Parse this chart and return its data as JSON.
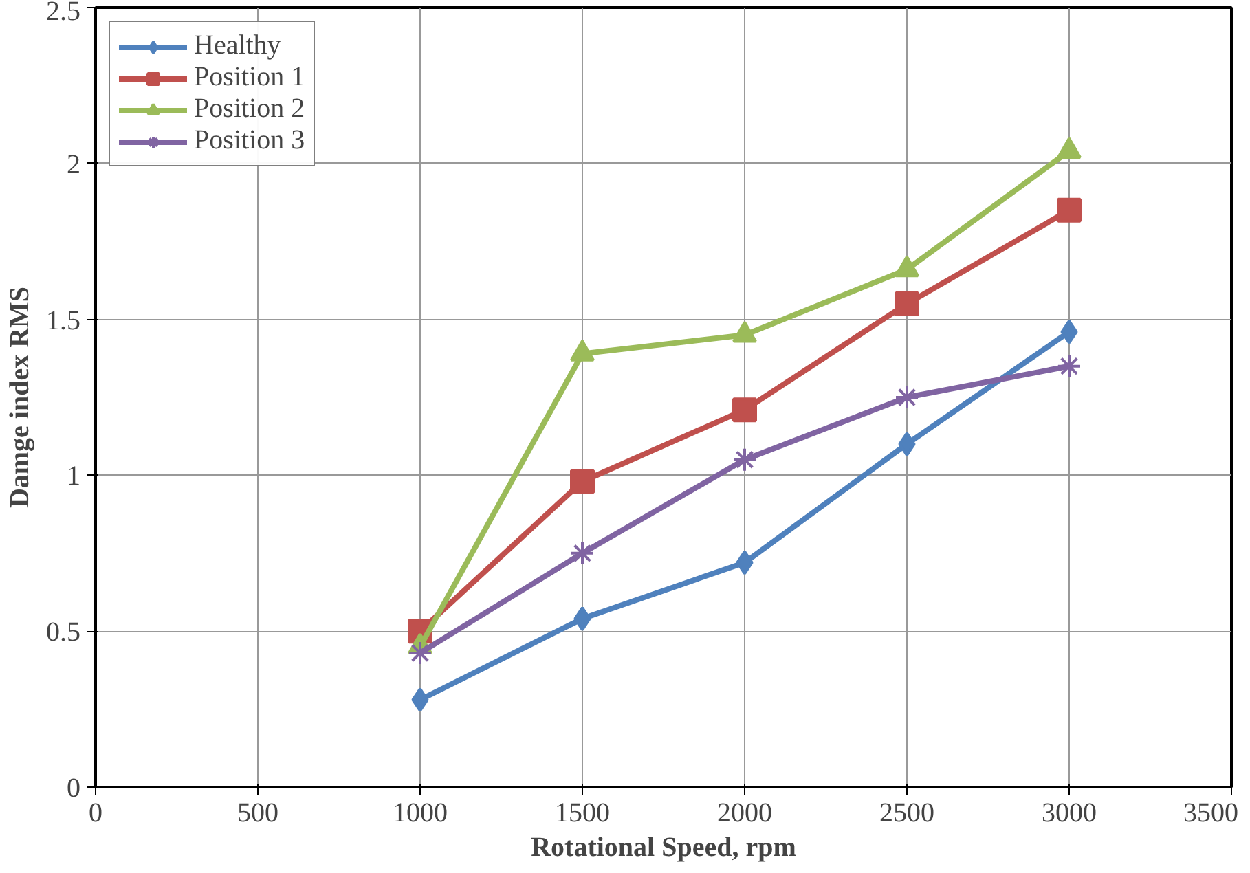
{
  "chart_data": {
    "type": "line",
    "xlabel": "Rotational Speed, rpm",
    "ylabel": "Damge index RMS",
    "x": [
      1000,
      1500,
      2000,
      2500,
      3000
    ],
    "series": [
      {
        "name": "Healthy",
        "color": "#4f81bd",
        "marker": "diamond",
        "values": [
          0.28,
          0.54,
          0.72,
          1.1,
          1.46
        ]
      },
      {
        "name": "Position 1",
        "color": "#c0504d",
        "marker": "square",
        "values": [
          0.5,
          0.98,
          1.21,
          1.55,
          1.85
        ]
      },
      {
        "name": "Position 2",
        "color": "#9bbb59",
        "marker": "triangle",
        "values": [
          0.45,
          1.39,
          1.45,
          1.66,
          2.04
        ]
      },
      {
        "name": "Position 3",
        "color": "#8064a2",
        "marker": "cross",
        "values": [
          0.43,
          0.75,
          1.05,
          1.25,
          1.35
        ]
      }
    ],
    "xlim": [
      0,
      3500
    ],
    "ylim": [
      0,
      2.5
    ],
    "xticks": [
      0,
      500,
      1000,
      1500,
      2000,
      2500,
      3000,
      3500
    ],
    "yticks": [
      0,
      {
        "value": 0.5,
        "label": "0.5"
      },
      1,
      {
        "value": 1.5,
        "label": "1.5"
      },
      2,
      {
        "value": 2.5,
        "label": "2.5"
      }
    ],
    "grid": true,
    "legend": "top left",
    "line_style": "solid"
  }
}
